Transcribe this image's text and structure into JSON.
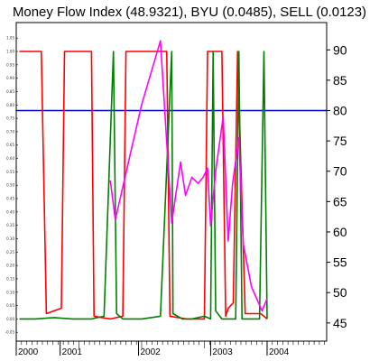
{
  "chart_data": {
    "type": "line",
    "title": "Money Flow Index (48.9321), BYU (0.0485), SELL (0.0123)",
    "x_labels": [
      "2000",
      "2001",
      "2002",
      "2003",
      "2004"
    ],
    "x_label_pos": [
      2000.0,
      2000.7,
      2001.95,
      2003.1,
      2004.0
    ],
    "xlim": [
      2000.0,
      2004.95
    ],
    "right_axis": {
      "ticks": [
        45,
        50,
        55,
        60,
        65,
        70,
        75,
        80,
        85,
        90
      ],
      "ylim": [
        42,
        94.5
      ]
    },
    "left_axis": {
      "ticks": [
        "-0.05",
        "0.00",
        "0.05",
        "0.10",
        "0.15",
        "0.20",
        "0.25",
        "0.30",
        "0.35",
        "0.40",
        "0.45",
        "0.50",
        "0.55",
        "0.60",
        "0.65",
        "0.70",
        "0.75",
        "0.80",
        "0.85",
        "0.90",
        "0.95",
        "1.00",
        "1.05"
      ],
      "values": [
        -0.05,
        0,
        0.05,
        0.1,
        0.15,
        0.2,
        0.25,
        0.3,
        0.35,
        0.4,
        0.45,
        0.5,
        0.55,
        0.6,
        0.65,
        0.7,
        0.75,
        0.8,
        0.85,
        0.9,
        0.95,
        1.0,
        1.05
      ],
      "ylim": [
        -0.083,
        1.108
      ]
    },
    "reference_line": {
      "value": 80,
      "color": "#0000cc"
    },
    "grid": false,
    "series": [
      {
        "color": "#ff0000",
        "axis": "left",
        "x": [
          2000.05,
          2000.4,
          2000.48,
          2000.72,
          2000.77,
          2001.2,
          2001.24,
          2001.5,
          2001.7,
          2001.75,
          2002.4,
          2002.45,
          2002.72,
          2002.8,
          2003.0,
          2003.05,
          2003.28,
          2003.34,
          2003.38,
          2003.46,
          2003.53,
          2003.65,
          2003.9,
          2004.0
        ],
        "y": [
          1.0,
          1.0,
          0.02,
          0.04,
          1.0,
          1.0,
          0.01,
          0.0,
          0.01,
          1.0,
          1.0,
          0.01,
          0.0,
          0.0,
          0.0,
          1.0,
          1.0,
          0.01,
          0.04,
          0.06,
          1.0,
          0.02,
          0.02,
          0.0
        ]
      },
      {
        "color": "#008000",
        "axis": "left",
        "x": [
          2000.05,
          2000.3,
          2000.6,
          2000.9,
          2001.2,
          2001.4,
          2001.55,
          2001.6,
          2001.7,
          2002.0,
          2002.3,
          2002.48,
          2002.5,
          2002.65,
          2002.8,
          2003.0,
          2003.1,
          2003.14,
          2003.18,
          2003.28,
          2003.5,
          2003.55,
          2003.6,
          2003.88,
          2003.95,
          2004.0
        ],
        "y": [
          0.0,
          0.0,
          0.005,
          0.0,
          0.0,
          0.01,
          1.0,
          0.02,
          0.0,
          0.0,
          0.01,
          1.0,
          0.02,
          0.0,
          0.0,
          0.01,
          0.0,
          1.0,
          0.03,
          0.0,
          0.0,
          1.0,
          0.0,
          0.0,
          1.0,
          0.0
        ]
      },
      {
        "color": "#ff00ff",
        "axis": "right",
        "x": [
          2001.5,
          2001.58,
          2001.8,
          2002.0,
          2002.2,
          2002.3,
          2002.48,
          2002.62,
          2002.7,
          2002.8,
          2002.9,
          2002.98,
          2003.05,
          2003.1,
          2003.18,
          2003.3,
          2003.38,
          2003.45,
          2003.55,
          2003.62,
          2003.75,
          2003.92,
          2004.0
        ],
        "y": [
          68.5,
          62.0,
          72.0,
          81.0,
          88.0,
          91.5,
          61.5,
          71.5,
          66.0,
          69.0,
          68.0,
          69.0,
          70.5,
          61.0,
          70.0,
          79.0,
          58.5,
          68.0,
          75.5,
          58.0,
          51.0,
          47.0,
          49.0
        ]
      }
    ]
  }
}
